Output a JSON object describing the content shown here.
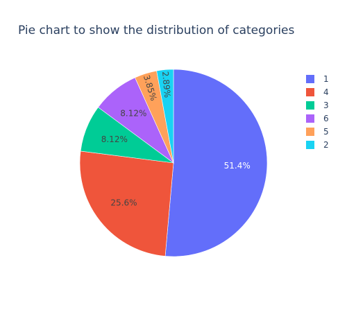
{
  "chart_data": {
    "type": "pie",
    "title": "Pie chart to show the distribution of categories",
    "categories": [
      "1",
      "4",
      "3",
      "6",
      "5",
      "2"
    ],
    "values": [
      51.4,
      25.6,
      8.12,
      8.12,
      3.85,
      2.89
    ],
    "labels": [
      "51.4%",
      "25.6%",
      "8.12%",
      "8.12%",
      "3.85%",
      "2.89%"
    ],
    "colors": [
      "#636efa",
      "#ef553b",
      "#00cc96",
      "#ab63fa",
      "#ffa15a",
      "#19d3f3"
    ],
    "direction": "clockwise",
    "start": "12 o'clock",
    "legend": {
      "placement": "right",
      "items": [
        "1",
        "4",
        "3",
        "6",
        "5",
        "2"
      ]
    }
  }
}
